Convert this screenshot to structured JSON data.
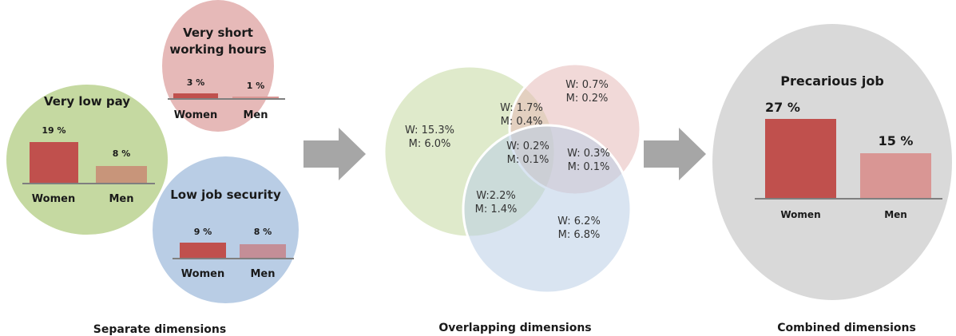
{
  "colors": {
    "women_bar": "#c0504d",
    "low_pay_circle": "#c5d9a1",
    "low_pay_men_bar": "#c8957a",
    "short_hours_circle": "#e6b9b8",
    "short_hours_men_bar": "#d99694",
    "job_security_circle": "#b9cde5",
    "job_security_men_bar": "#c48e97",
    "arrow": "#a6a6a6",
    "combined_circle": "#d9d9d9",
    "combined_men_bar": "#d99694"
  },
  "separate": {
    "low_pay": {
      "title": "Very low pay",
      "women_pct": "19 %",
      "men_pct": "8 %",
      "women_value": 19,
      "men_value": 8,
      "women_label": "Women",
      "men_label": "Men"
    },
    "short_hours": {
      "title_line1": "Very short",
      "title_line2": "working hours",
      "women_pct": "3 %",
      "men_pct": "1 %",
      "women_value": 3,
      "men_value": 1,
      "women_label": "Women",
      "men_label": "Men"
    },
    "job_security": {
      "title": "Low job security",
      "women_pct": "9 %",
      "men_pct": "8 %",
      "women_value": 9,
      "men_value": 8,
      "women_label": "Women",
      "men_label": "Men"
    }
  },
  "overlap": {
    "pay_only": {
      "w": "W: 15.3%",
      "m": "M: 6.0%"
    },
    "hours_only": {
      "w": "W: 0.7%",
      "m": "M: 0.2%"
    },
    "pay_hours": {
      "w": "W: 1.7%",
      "m": "M: 0.4%"
    },
    "all_three": {
      "w": "W: 0.2%",
      "m": "M: 0.1%"
    },
    "hours_security": {
      "w": "W: 0.3%",
      "m": "M: 0.1%"
    },
    "pay_security": {
      "w": "W:2.2%",
      "m": "M: 1.4%"
    },
    "security_only": {
      "w": "W: 6.2%",
      "m": "M: 6.8%"
    }
  },
  "combined": {
    "title": "Precarious job",
    "women_pct": "27 %",
    "men_pct": "15 %",
    "women_value": 27,
    "men_value": 15,
    "women_label": "Women",
    "men_label": "Men"
  },
  "sections": {
    "separate": "Separate dimensions",
    "overlapping": "Overlapping dimensions",
    "combined": "Combined dimensions"
  }
}
